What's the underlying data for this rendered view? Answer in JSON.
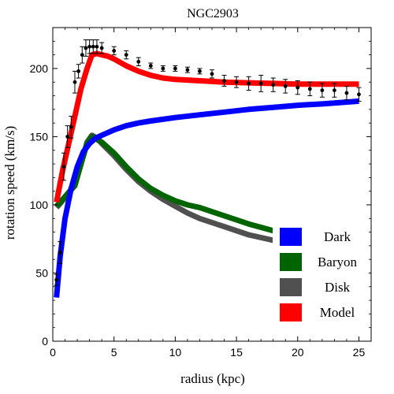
{
  "chart_data": {
    "type": "line",
    "title": "NGC2903",
    "xlabel": "radius (kpc)",
    "ylabel": "rotation speed (km/s)",
    "xlim": [
      0,
      26
    ],
    "ylim": [
      0,
      230
    ],
    "x_ticks": [
      0,
      5,
      10,
      15,
      20,
      25
    ],
    "y_ticks": [
      0,
      50,
      100,
      150,
      200
    ],
    "grid": false,
    "legend_position": "bottom-right",
    "series": [
      {
        "name": "Dark",
        "color": "#0000ff",
        "x": [
          0.3,
          0.6,
          1.0,
          1.5,
          2.0,
          2.5,
          3.0,
          3.5,
          4.0,
          5.0,
          6.0,
          7.0,
          8.0,
          10.0,
          12.0,
          14.0,
          16.0,
          18.0,
          20.0,
          22.0,
          25.0
        ],
        "y": [
          32,
          62,
          90,
          112,
          128,
          139,
          145,
          149,
          151,
          155,
          158,
          160,
          161.5,
          164,
          166,
          168,
          170,
          171.5,
          173,
          174,
          176
        ]
      },
      {
        "name": "Baryon",
        "color": "#006400",
        "x": [
          0.3,
          0.7,
          1.2,
          1.8,
          2.4,
          2.8,
          3.2,
          3.6,
          4.0,
          5.0,
          6.0,
          7.0,
          8.0,
          9.0,
          10.0,
          11.0,
          12.0,
          14.0,
          16.0,
          18.0,
          20.0,
          22.0,
          25.0
        ],
        "y": [
          99,
          103,
          108,
          114,
          133,
          145,
          150,
          148,
          146,
          138,
          128,
          119,
          112,
          107,
          103,
          100,
          98,
          92,
          86,
          81,
          76,
          72,
          68
        ]
      },
      {
        "name": "Disk",
        "color": "#505050",
        "x": [
          0.3,
          0.7,
          1.2,
          1.8,
          2.4,
          2.8,
          3.2,
          3.6,
          4.0,
          5.0,
          6.0,
          7.0,
          8.0,
          9.0,
          10.0,
          11.0,
          12.0,
          14.0,
          16.0,
          18.0,
          20.0,
          22.0,
          25.0
        ],
        "y": [
          98,
          102,
          108,
          115,
          133,
          146,
          151,
          149,
          145,
          136,
          126,
          117,
          110,
          104,
          99,
          94,
          90,
          84,
          78,
          74,
          70,
          67,
          64
        ]
      },
      {
        "name": "Model",
        "color": "#ff0000",
        "x": [
          0.3,
          0.8,
          1.3,
          1.8,
          2.3,
          2.8,
          3.2,
          3.6,
          4.0,
          4.5,
          5.0,
          6.0,
          7.0,
          8.0,
          9.0,
          10.0,
          12.0,
          14.0,
          16.0,
          18.0,
          20.0,
          22.0,
          25.0
        ],
        "y": [
          102,
          125,
          145,
          165,
          185,
          200,
          210,
          211,
          210,
          209,
          207,
          202,
          198,
          195,
          193,
          192,
          191,
          190,
          189.5,
          189,
          188.5,
          188.5,
          188.5
        ]
      }
    ],
    "observations": {
      "name": "data",
      "color": "#000000",
      "x": [
        0.3,
        0.6,
        0.9,
        1.2,
        1.5,
        1.8,
        2.1,
        2.4,
        2.7,
        3.0,
        3.3,
        3.6,
        4.0,
        5.0,
        6.0,
        7.0,
        8.0,
        9.0,
        10.0,
        11.0,
        12.0,
        13.0,
        14.0,
        15.0,
        16.0,
        17.0,
        18.0,
        19.0,
        20.0,
        21.0,
        22.0,
        23.0,
        24.0,
        25.0
      ],
      "y": [
        45,
        65,
        128,
        150,
        157,
        190,
        198,
        210,
        215,
        216,
        216,
        216,
        215,
        213,
        210,
        205,
        202,
        200,
        200,
        199,
        198,
        196,
        191,
        190,
        189,
        189,
        188,
        187,
        186,
        185,
        184,
        184,
        182,
        181
      ],
      "err": [
        4,
        8,
        10,
        8,
        8,
        8,
        5,
        6,
        6,
        5,
        5,
        5,
        4,
        3,
        3,
        3,
        2,
        2,
        2,
        2,
        2,
        3,
        4,
        4,
        5,
        6,
        5,
        5,
        5,
        5,
        5,
        5,
        5,
        5
      ]
    }
  }
}
